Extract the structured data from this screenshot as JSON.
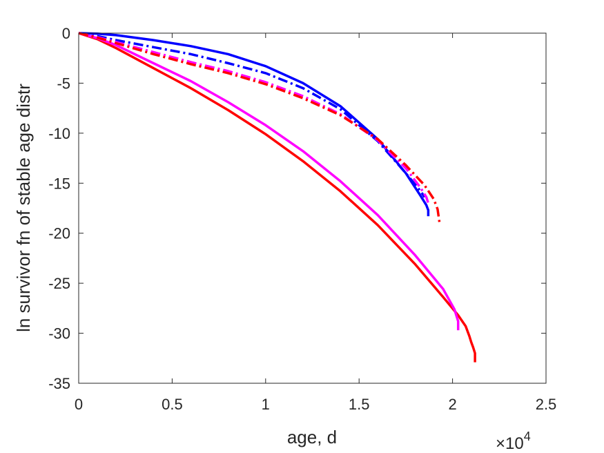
{
  "chart_data": {
    "type": "line",
    "xlabel": "age, d",
    "ylabel": "ln survivor fn of stable age distr",
    "x_multiplier": "×10",
    "x_multiplier_exponent": "4",
    "xlim": [
      0,
      2.5
    ],
    "ylim": [
      -35,
      0
    ],
    "xticks": [
      0,
      0.5,
      1,
      1.5,
      2,
      2.5
    ],
    "xtick_labels": [
      "0",
      "0.5",
      "1",
      "1.5",
      "2",
      "2.5"
    ],
    "yticks": [
      0,
      -5,
      -10,
      -15,
      -20,
      -25,
      -30,
      -35
    ],
    "ytick_labels": [
      "0",
      "-5",
      "-10",
      "-15",
      "-20",
      "-25",
      "-30",
      "-35"
    ],
    "grid": false,
    "series": [
      {
        "color": "#ff0000",
        "dash": "solid",
        "x": [
          0,
          0.1,
          0.2,
          0.4,
          0.6,
          0.8,
          1.0,
          1.2,
          1.4,
          1.6,
          1.8,
          1.95,
          2.03,
          2.07,
          2.09,
          2.1,
          2.11,
          2.12,
          2.12
        ],
        "y": [
          0,
          -0.6,
          -1.5,
          -3.5,
          -5.5,
          -7.7,
          -10.1,
          -12.8,
          -15.8,
          -19.2,
          -23.1,
          -26.4,
          -28.2,
          -29.3,
          -30.3,
          -30.9,
          -31.4,
          -32.0,
          -32.9
        ]
      },
      {
        "color": "#ff00ff",
        "dash": "solid",
        "x": [
          0,
          0.1,
          0.2,
          0.4,
          0.6,
          0.8,
          1.0,
          1.2,
          1.4,
          1.6,
          1.8,
          1.95,
          2.01,
          2.03,
          2.03
        ],
        "y": [
          0,
          -0.5,
          -1.2,
          -3.0,
          -4.8,
          -6.9,
          -9.2,
          -11.8,
          -14.8,
          -18.2,
          -22.2,
          -25.6,
          -27.6,
          -28.8,
          -29.7
        ]
      },
      {
        "color": "#0000ff",
        "dash": "solid",
        "x": [
          0,
          0.1,
          0.2,
          0.4,
          0.6,
          0.8,
          1.0,
          1.2,
          1.4,
          1.6,
          1.75,
          1.83,
          1.86,
          1.87,
          1.87
        ],
        "y": [
          0,
          -0.05,
          -0.2,
          -0.7,
          -1.3,
          -2.1,
          -3.3,
          -5.0,
          -7.3,
          -10.6,
          -14.0,
          -16.3,
          -17.2,
          -17.7,
          -18.3
        ]
      },
      {
        "color": "#0000ff",
        "dash": "dashdot",
        "x": [
          0,
          0.1,
          0.2,
          0.4,
          0.6,
          0.8,
          1.0,
          1.2,
          1.4,
          1.6,
          1.75,
          1.82,
          1.84,
          1.85
        ],
        "y": [
          0,
          -0.3,
          -0.7,
          -1.4,
          -2.1,
          -3.0,
          -4.0,
          -5.5,
          -7.6,
          -10.8,
          -14.0,
          -15.6,
          -16.1,
          -16.4
        ]
      },
      {
        "color": "#ff00ff",
        "dash": "dashdot",
        "x": [
          0,
          0.1,
          0.2,
          0.4,
          0.6,
          0.8,
          1.0,
          1.2,
          1.4,
          1.6,
          1.75,
          1.83,
          1.86,
          1.87
        ],
        "y": [
          0,
          -0.4,
          -0.9,
          -1.9,
          -2.9,
          -3.8,
          -4.9,
          -6.3,
          -8.1,
          -10.7,
          -13.5,
          -15.5,
          -16.4,
          -17.0
        ]
      },
      {
        "color": "#ff0000",
        "dash": "dashdot",
        "x": [
          0,
          0.1,
          0.2,
          0.4,
          0.6,
          0.8,
          1.0,
          1.2,
          1.4,
          1.6,
          1.75,
          1.85,
          1.9,
          1.92,
          1.93
        ],
        "y": [
          0,
          -0.45,
          -1.0,
          -2.1,
          -3.1,
          -4.0,
          -5.1,
          -6.5,
          -8.2,
          -10.6,
          -13.2,
          -15.2,
          -16.6,
          -17.6,
          -18.9
        ]
      }
    ]
  }
}
